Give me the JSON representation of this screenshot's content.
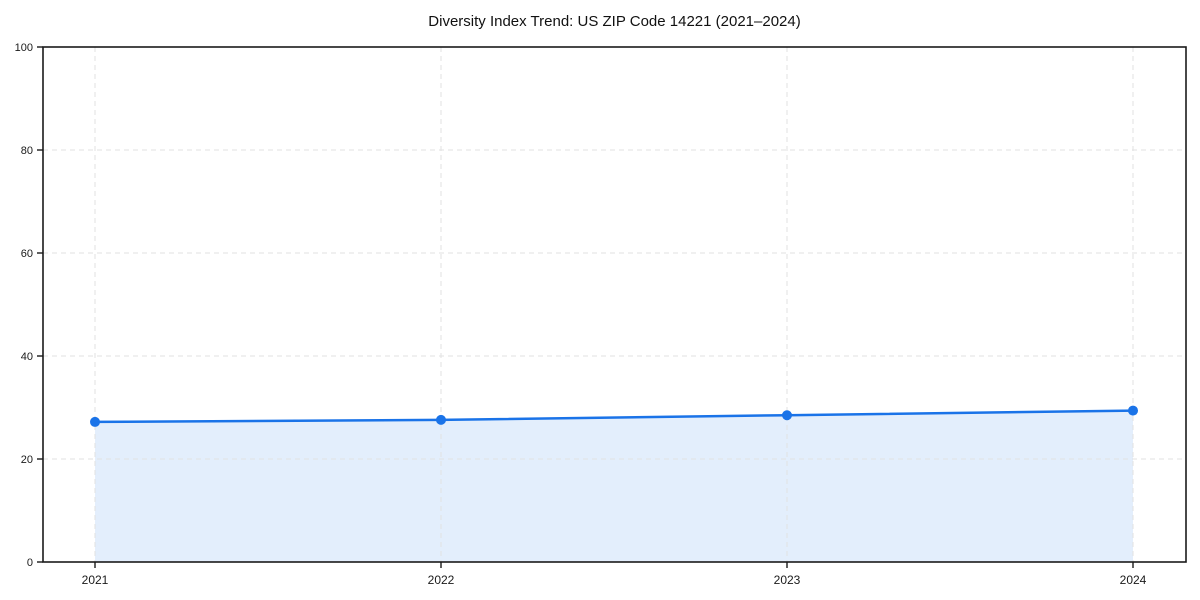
{
  "chart_data": {
    "type": "area",
    "title": "Diversity Index Trend: US ZIP Code 14221 (2021–2024)",
    "x": [
      "2021",
      "2022",
      "2023",
      "2024"
    ],
    "series": [
      {
        "name": "Diversity Index",
        "values": [
          27.2,
          27.6,
          28.5,
          29.4
        ]
      }
    ],
    "xlabel": "",
    "ylabel": "",
    "ylim": [
      0,
      100
    ],
    "yticks": [
      0,
      20,
      40,
      60,
      80,
      100
    ],
    "grid": true,
    "grid_style": "dashed",
    "legend": "none",
    "colors": {
      "line": "#1a73e8",
      "marker": "#1a73e8",
      "area_fill": "rgba(26,115,232,0.12)",
      "grid": "#e2e2e2",
      "spine": "#1a1a1a",
      "tick_label": "#1a1a1a",
      "title": "#111111",
      "background": "#ffffff"
    }
  }
}
